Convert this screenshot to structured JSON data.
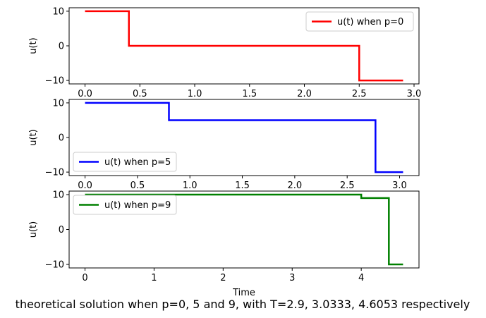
{
  "figure": {
    "caption": "theoretical solution when p=0, 5 and 9, with T=2.9, 3.0333, 4.6053 respectively"
  },
  "chart_data": [
    {
      "type": "line",
      "ylabel": "u(t)",
      "xlabel": "",
      "xlim": [
        -0.145,
        3.045
      ],
      "ylim": [
        -11,
        11
      ],
      "xticks": [
        0.0,
        0.5,
        1.0,
        1.5,
        2.0,
        2.5,
        3.0
      ],
      "xtick_labels": [
        "0.0",
        "0.5",
        "1.0",
        "1.5",
        "2.0",
        "2.5",
        "3.0"
      ],
      "yticks": [
        10,
        0,
        -10
      ],
      "ytick_labels": [
        "10",
        "0",
        "−10"
      ],
      "legend_position": "upper right",
      "grid": false,
      "series": [
        {
          "name": "u(t) when p=0",
          "color": "#ff0000",
          "x": [
            0.0,
            0.4,
            0.4,
            2.5,
            2.5,
            2.9
          ],
          "y": [
            10,
            10,
            0,
            0,
            -10,
            -10
          ]
        }
      ]
    },
    {
      "type": "line",
      "ylabel": "u(t)",
      "xlabel": "",
      "xlim": [
        -0.152,
        3.185
      ],
      "ylim": [
        -11,
        11
      ],
      "xticks": [
        0.0,
        0.5,
        1.0,
        1.5,
        2.0,
        2.5,
        3.0
      ],
      "xtick_labels": [
        "0.0",
        "0.5",
        "1.0",
        "1.5",
        "2.0",
        "2.5",
        "3.0"
      ],
      "yticks": [
        10,
        0,
        -10
      ],
      "ytick_labels": [
        "10",
        "0",
        "−10"
      ],
      "legend_position": "lower left",
      "grid": false,
      "series": [
        {
          "name": "u(t) when p=5",
          "color": "#0000ff",
          "x": [
            0.0,
            0.8,
            0.8,
            2.77,
            2.77,
            3.0333
          ],
          "y": [
            10,
            10,
            5,
            5,
            -10,
            -10
          ]
        }
      ]
    },
    {
      "type": "line",
      "ylabel": "u(t)",
      "xlabel": "Time",
      "xlim": [
        -0.23,
        4.836
      ],
      "ylim": [
        -11,
        11
      ],
      "xticks": [
        0,
        1,
        2,
        3,
        4
      ],
      "xtick_labels": [
        "0",
        "1",
        "2",
        "3",
        "4"
      ],
      "yticks": [
        10,
        0,
        -10
      ],
      "ytick_labels": [
        "10",
        "0",
        "−10"
      ],
      "legend_position": "upper left",
      "grid": false,
      "series": [
        {
          "name": "u(t) when p=9",
          "color": "#008000",
          "x": [
            0.0,
            4.0,
            4.0,
            4.4,
            4.4,
            4.6053
          ],
          "y": [
            10,
            10,
            9,
            9,
            -10,
            -10
          ]
        }
      ]
    }
  ]
}
